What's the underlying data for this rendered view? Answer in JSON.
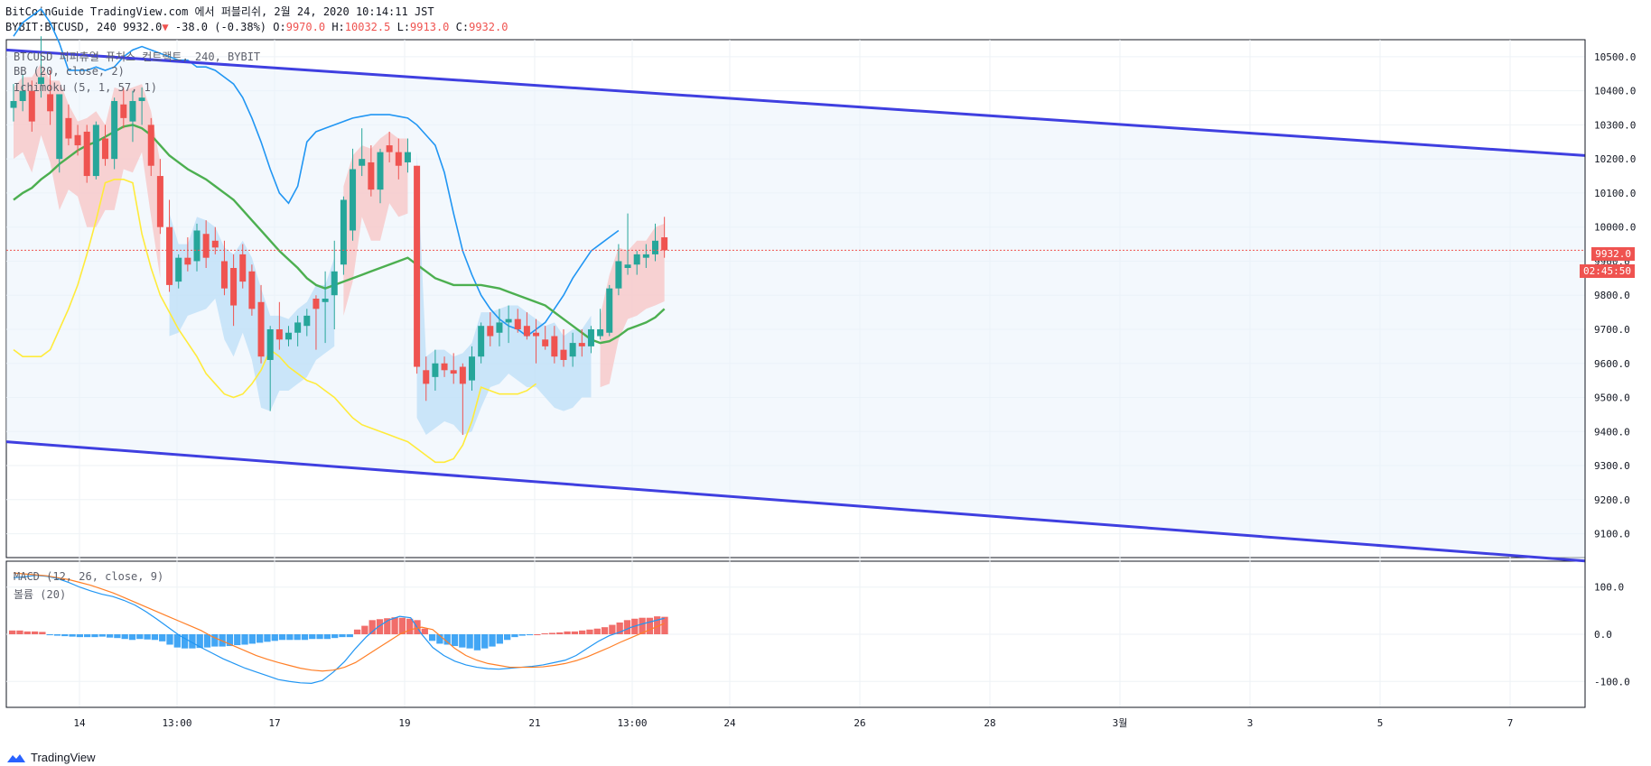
{
  "header": {
    "publisher": "BitCoinGuide TradingView.com 에서 퍼블리쉬, 2월 24, 2020 10:14:11 JST",
    "symbol": "BYBIT:BTCUSD, 240",
    "last": "9932.0",
    "arrow": "▼",
    "change": "-38.0 (-0.38%)",
    "o_label": "O:",
    "o": "9970.0",
    "h_label": "H:",
    "h": "10032.5",
    "l_label": "L:",
    "l": "9913.0",
    "c_label": "C:",
    "c": "9932.0"
  },
  "legends": {
    "symbol": "BTCUSD 퍼피츄얼 퓨처스 컨트랙트, 240, BYBIT",
    "bb": "BB (20, close, 2)",
    "ichimoku": "Ichimoku (5, 1, 57, 1)",
    "macd": "MACD (12, 26, close, 9)",
    "volume": "볼륨 (20)"
  },
  "price_badge": "9932.0",
  "countdown_badge": "02:45:50",
  "footer": {
    "brand": "TradingView"
  },
  "colors": {
    "up": "#26a69a",
    "down": "#ef5350",
    "bb_basis": "#4caf50",
    "bb_upper": "#2196f3",
    "bb_lower": "#ffeb3b",
    "trend": "#3f3fe0",
    "cloud_red": "#f8c7c7",
    "cloud_blue": "#bfe0f7",
    "macd": "#2196f3",
    "signal": "#ff7f27"
  },
  "chart_data": {
    "type": "candlestick",
    "price_axis": {
      "ticks": [
        10500,
        10400,
        10300,
        10200,
        10100,
        10000,
        9900,
        9800,
        9700,
        9600,
        9500,
        9400,
        9300,
        9200,
        9100
      ],
      "range": [
        9030,
        10550
      ]
    },
    "time_axis": {
      "ticks": [
        "14",
        "13:00",
        "17",
        "19",
        "21",
        "13:00",
        "24",
        "26",
        "28",
        "3월",
        "3",
        "5",
        "7"
      ]
    },
    "macd_axis": {
      "ticks": [
        "100.0",
        "0.0",
        "-100.0"
      ],
      "range": [
        -155,
        155
      ]
    },
    "candles": [
      [
        10350,
        10420,
        10310,
        10370
      ],
      [
        10370,
        10450,
        10340,
        10400
      ],
      [
        10400,
        10430,
        10280,
        10310
      ],
      [
        10420,
        10560,
        10380,
        10440
      ],
      [
        10390,
        10460,
        10300,
        10340
      ],
      [
        10200,
        10380,
        10160,
        10390
      ],
      [
        10320,
        10360,
        10240,
        10260
      ],
      [
        10270,
        10300,
        10210,
        10240
      ],
      [
        10280,
        10300,
        10130,
        10150
      ],
      [
        10150,
        10310,
        10140,
        10300
      ],
      [
        10260,
        10300,
        10180,
        10200
      ],
      [
        10200,
        10380,
        10170,
        10370
      ],
      [
        10360,
        10410,
        10290,
        10320
      ],
      [
        10310,
        10400,
        10250,
        10370
      ],
      [
        10370,
        10410,
        10300,
        10380
      ],
      [
        10300,
        10320,
        10150,
        10180
      ],
      [
        10150,
        10200,
        9980,
        10000
      ],
      [
        10000,
        10080,
        9810,
        9830
      ],
      [
        9840,
        9920,
        9820,
        9910
      ],
      [
        9910,
        9970,
        9870,
        9890
      ],
      [
        9900,
        10010,
        9870,
        9990
      ],
      [
        9980,
        10020,
        9880,
        9910
      ],
      [
        9960,
        10000,
        9920,
        9940
      ],
      [
        9900,
        9960,
        9800,
        9820
      ],
      [
        9880,
        9920,
        9710,
        9770
      ],
      [
        9920,
        9950,
        9820,
        9840
      ],
      [
        9870,
        9890,
        9740,
        9760
      ],
      [
        9780,
        9830,
        9600,
        9620
      ],
      [
        9610,
        9710,
        9460,
        9700
      ],
      [
        9700,
        9780,
        9640,
        9670
      ],
      [
        9670,
        9710,
        9650,
        9690
      ],
      [
        9690,
        9740,
        9650,
        9720
      ],
      [
        9710,
        9760,
        9680,
        9740
      ],
      [
        9790,
        9800,
        9640,
        9760
      ],
      [
        9780,
        9870,
        9660,
        9790
      ],
      [
        9800,
        9960,
        9700,
        9870
      ],
      [
        9890,
        10090,
        9860,
        10080
      ],
      [
        9990,
        10230,
        9960,
        10170
      ],
      [
        10180,
        10290,
        10150,
        10200
      ],
      [
        10190,
        10240,
        10090,
        10110
      ],
      [
        10110,
        10230,
        10070,
        10220
      ],
      [
        10240,
        10280,
        10190,
        10220
      ],
      [
        10220,
        10260,
        10140,
        10180
      ],
      [
        10190,
        10260,
        10160,
        10220
      ],
      [
        10180,
        10180,
        9570,
        9590
      ],
      [
        9580,
        9620,
        9490,
        9540
      ],
      [
        9560,
        9640,
        9520,
        9600
      ],
      [
        9600,
        9620,
        9560,
        9580
      ],
      [
        9580,
        9630,
        9540,
        9570
      ],
      [
        9590,
        9600,
        9390,
        9540
      ],
      [
        9550,
        9650,
        9520,
        9620
      ],
      [
        9620,
        9720,
        9600,
        9710
      ],
      [
        9710,
        9750,
        9650,
        9680
      ],
      [
        9690,
        9760,
        9650,
        9720
      ],
      [
        9720,
        9770,
        9660,
        9730
      ],
      [
        9730,
        9760,
        9690,
        9700
      ],
      [
        9710,
        9750,
        9670,
        9680
      ],
      [
        9690,
        9730,
        9600,
        9680
      ],
      [
        9670,
        9710,
        9640,
        9650
      ],
      [
        9680,
        9710,
        9600,
        9620
      ],
      [
        9640,
        9700,
        9590,
        9610
      ],
      [
        9620,
        9690,
        9590,
        9660
      ],
      [
        9660,
        9700,
        9620,
        9650
      ],
      [
        9650,
        9710,
        9630,
        9700
      ],
      [
        9680,
        9760,
        9670,
        9700
      ],
      [
        9690,
        9830,
        9680,
        9820
      ],
      [
        9820,
        9950,
        9800,
        9900
      ],
      [
        9880,
        10040,
        9860,
        9890
      ],
      [
        9890,
        9930,
        9860,
        9920
      ],
      [
        9910,
        9950,
        9880,
        9920
      ],
      [
        9920,
        10010,
        9900,
        9960
      ],
      [
        9970,
        10030,
        9910,
        9932
      ]
    ],
    "bb_basis": [
      10080,
      10100,
      10115,
      10140,
      10160,
      10185,
      10205,
      10225,
      10240,
      10250,
      10265,
      10280,
      10295,
      10300,
      10290,
      10270,
      10240,
      10210,
      10190,
      10170,
      10155,
      10140,
      10120,
      10100,
      10080,
      10050,
      10020,
      9990,
      9960,
      9930,
      9905,
      9880,
      9850,
      9830,
      9820,
      9830,
      9840,
      9850,
      9860,
      9870,
      9880,
      9890,
      9900,
      9910,
      9890,
      9870,
      9850,
      9840,
      9830,
      9830,
      9830,
      9830,
      9825,
      9820,
      9810,
      9800,
      9790,
      9780,
      9770,
      9750,
      9730,
      9710,
      9690,
      9670,
      9660,
      9665,
      9680,
      9700,
      9710,
      9720,
      9735,
      9760
    ],
    "bb_upper": [
      10560,
      10600,
      10620,
      10640,
      10600,
      10540,
      10460,
      10460,
      10460,
      10470,
      10460,
      10470,
      10500,
      10520,
      10530,
      10520,
      10510,
      10500,
      10490,
      10490,
      10470,
      10470,
      10460,
      10440,
      10420,
      10380,
      10320,
      10250,
      10170,
      10100,
      10070,
      10120,
      10250,
      10280,
      10290,
      10300,
      10310,
      10320,
      10325,
      10330,
      10330,
      10330,
      10325,
      10320,
      10300,
      10270,
      10240,
      10160,
      10040,
      9930,
      9860,
      9800,
      9760,
      9730,
      9710,
      9700,
      9680,
      9700,
      9720,
      9760,
      9800,
      9850,
      9890,
      9930,
      9950,
      9970,
      9990
    ],
    "bb_lower": [
      9640,
      9620,
      9620,
      9620,
      9640,
      9700,
      9760,
      9830,
      9920,
      10020,
      10130,
      10140,
      10140,
      10130,
      9980,
      9880,
      9800,
      9750,
      9700,
      9660,
      9620,
      9570,
      9540,
      9510,
      9500,
      9510,
      9540,
      9580,
      9640,
      9620,
      9590,
      9570,
      9550,
      9540,
      9520,
      9500,
      9470,
      9440,
      9420,
      9410,
      9400,
      9390,
      9380,
      9370,
      9350,
      9330,
      9310,
      9310,
      9320,
      9360,
      9430,
      9530,
      9520,
      9510,
      9510,
      9510,
      9520,
      9540
    ],
    "macd": [
      120,
      122,
      125,
      123,
      118,
      110,
      100,
      92,
      85,
      80,
      72,
      62,
      48,
      32,
      15,
      -2,
      -15,
      -28,
      -40,
      -52,
      -62,
      -72,
      -80,
      -88,
      -96,
      -100,
      -103,
      -104,
      -98,
      -80,
      -58,
      -30,
      -5,
      15,
      30,
      38,
      35,
      0,
      -28,
      -45,
      -57,
      -65,
      -70,
      -73,
      -74,
      -72,
      -70,
      -68,
      -65,
      -60,
      -55,
      -45,
      -30,
      -15,
      -3,
      5,
      15,
      22,
      28,
      34
    ],
    "signal": [
      130,
      128,
      126,
      124,
      120,
      116,
      110,
      104,
      96,
      88,
      78,
      68,
      58,
      48,
      38,
      28,
      18,
      8,
      -5,
      -15,
      -25,
      -35,
      -45,
      -53,
      -60,
      -66,
      -72,
      -76,
      -78,
      -76,
      -70,
      -60,
      -45,
      -30,
      -15,
      0,
      10,
      15,
      10,
      -10,
      -30,
      -45,
      -55,
      -62,
      -66,
      -70,
      -70,
      -70,
      -69,
      -66,
      -62,
      -56,
      -48,
      -38,
      -28,
      -17,
      -7,
      3,
      13,
      23
    ],
    "hist": [
      8,
      8,
      6,
      6,
      5,
      -2,
      -3,
      -4,
      -5,
      -6,
      -6,
      -6,
      -5,
      -7,
      -8,
      -10,
      -12,
      -10,
      -11,
      -12,
      -15,
      -22,
      -28,
      -30,
      -30,
      -29,
      -28,
      -26,
      -26,
      -25,
      -23,
      -22,
      -20,
      -18,
      -16,
      -14,
      -12,
      -12,
      -12,
      -12,
      -10,
      -10,
      -10,
      -8,
      -6,
      -6,
      10,
      18,
      30,
      32,
      34,
      36,
      35,
      33,
      30,
      12,
      -14,
      -20,
      -22,
      -25,
      -28,
      -30,
      -34,
      -30,
      -26,
      -20,
      -12,
      -6,
      -3,
      -2,
      0,
      2,
      3,
      4,
      6,
      6,
      8,
      10,
      12,
      15,
      20,
      25,
      30,
      33,
      35,
      35,
      38,
      37
    ]
  }
}
